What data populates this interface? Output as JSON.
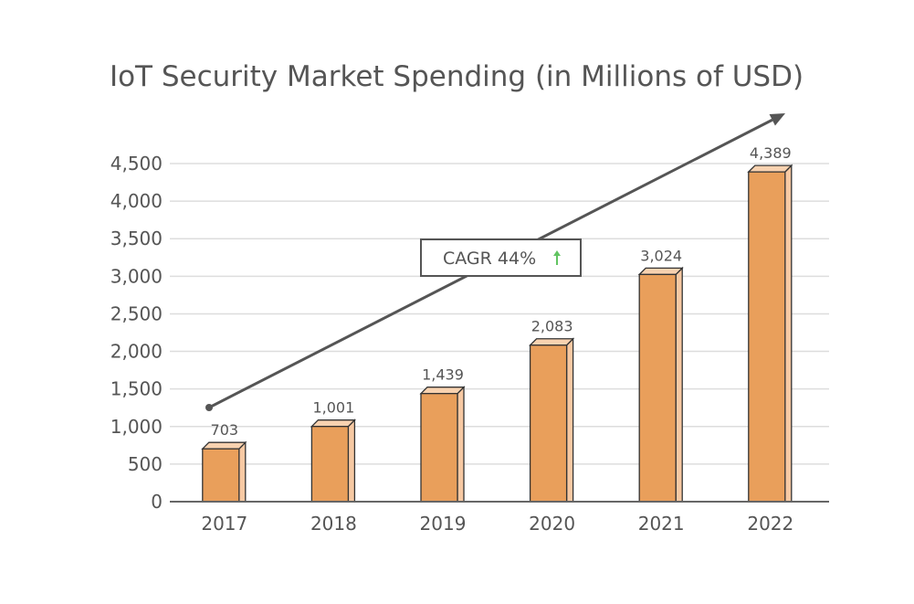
{
  "chart_data": {
    "type": "bar",
    "title": "IoT Security Market Spending (in Millions of USD)",
    "xlabel": "",
    "ylabel": "",
    "categories": [
      "2017",
      "2018",
      "2019",
      "2020",
      "2021",
      "2022"
    ],
    "values": [
      703,
      1001,
      1439,
      2083,
      3024,
      4389
    ],
    "value_labels": [
      "703",
      "1,001",
      "1,439",
      "2,083",
      "3,024",
      "4,389"
    ],
    "ylim": [
      0,
      4500
    ],
    "yticks": [
      0,
      500,
      1000,
      1500,
      2000,
      2500,
      3000,
      3500,
      4000,
      4500
    ],
    "ytick_labels": [
      "0",
      "500",
      "1,000",
      "1,500",
      "2,000",
      "2,500",
      "3,000",
      "3,500",
      "4,000",
      "4,500"
    ],
    "grid": true,
    "annotation": {
      "label": "CAGR 44%",
      "direction": "up"
    },
    "colors": {
      "bar_front": "#e99f5b",
      "bar_side": "#f7c9a3",
      "bar_top": "#f8d2b0",
      "bar_edge": "#333333",
      "grid": "#dddddd",
      "axis": "#666666",
      "trend_arrow": "#555555",
      "cagr_arrow": "#62c462",
      "text": "#555555"
    }
  }
}
